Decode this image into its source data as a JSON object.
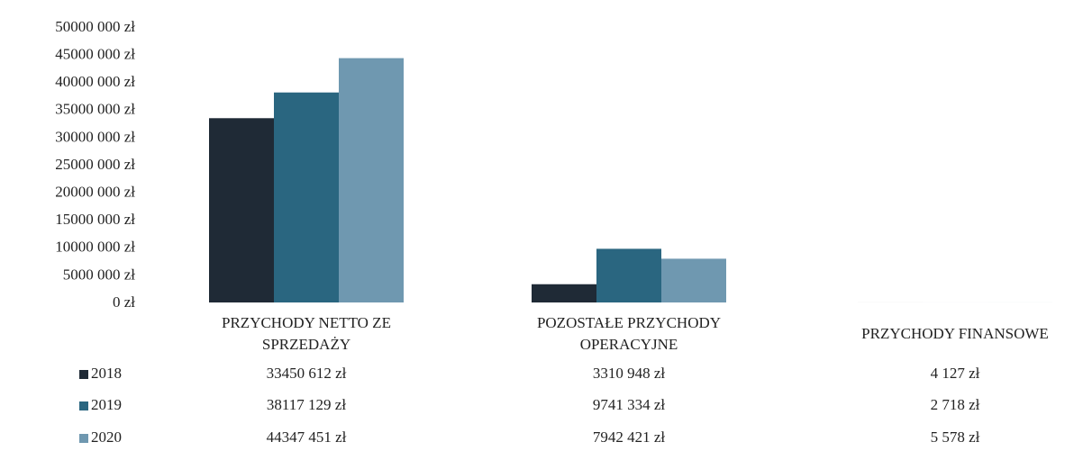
{
  "chart_data": {
    "type": "bar",
    "categories": [
      "PRZYCHODY NETTO ZE SPRZEDAŻY",
      "POZOSTAŁE PRZYCHODY OPERACYJNE",
      "PRZYCHODY FINANSOWE"
    ],
    "series": [
      {
        "name": "2018",
        "color": "#1f2a36",
        "values": [
          33450612,
          3310948,
          4127
        ],
        "value_labels": [
          "33450 612 zł",
          "3310 948 zł",
          "4 127 zł"
        ]
      },
      {
        "name": "2019",
        "color": "#2a6680",
        "values": [
          38117129,
          9741334,
          2718
        ],
        "value_labels": [
          "38117 129 zł",
          "9741 334 zł",
          "2 718 zł"
        ]
      },
      {
        "name": "2020",
        "color": "#6f98b0",
        "values": [
          44347451,
          7942421,
          5578
        ],
        "value_labels": [
          "44347 451 zł",
          "7942 421 zł",
          "5 578 zł"
        ]
      }
    ],
    "ylim": [
      0,
      50000000
    ],
    "yticks": [
      {
        "value": 0,
        "label": "0 zł"
      },
      {
        "value": 5000000,
        "label": "5000 000 zł"
      },
      {
        "value": 10000000,
        "label": "10000 000 zł"
      },
      {
        "value": 15000000,
        "label": "15000 000 zł"
      },
      {
        "value": 20000000,
        "label": "20000 000 zł"
      },
      {
        "value": 25000000,
        "label": "25000 000 zł"
      },
      {
        "value": 30000000,
        "label": "30000 000 zł"
      },
      {
        "value": 35000000,
        "label": "35000 000 zł"
      },
      {
        "value": 40000000,
        "label": "40000 000 zł"
      },
      {
        "value": 45000000,
        "label": "45000 000 zł"
      },
      {
        "value": 50000000,
        "label": "50000 000 zł"
      }
    ],
    "grid": false
  }
}
